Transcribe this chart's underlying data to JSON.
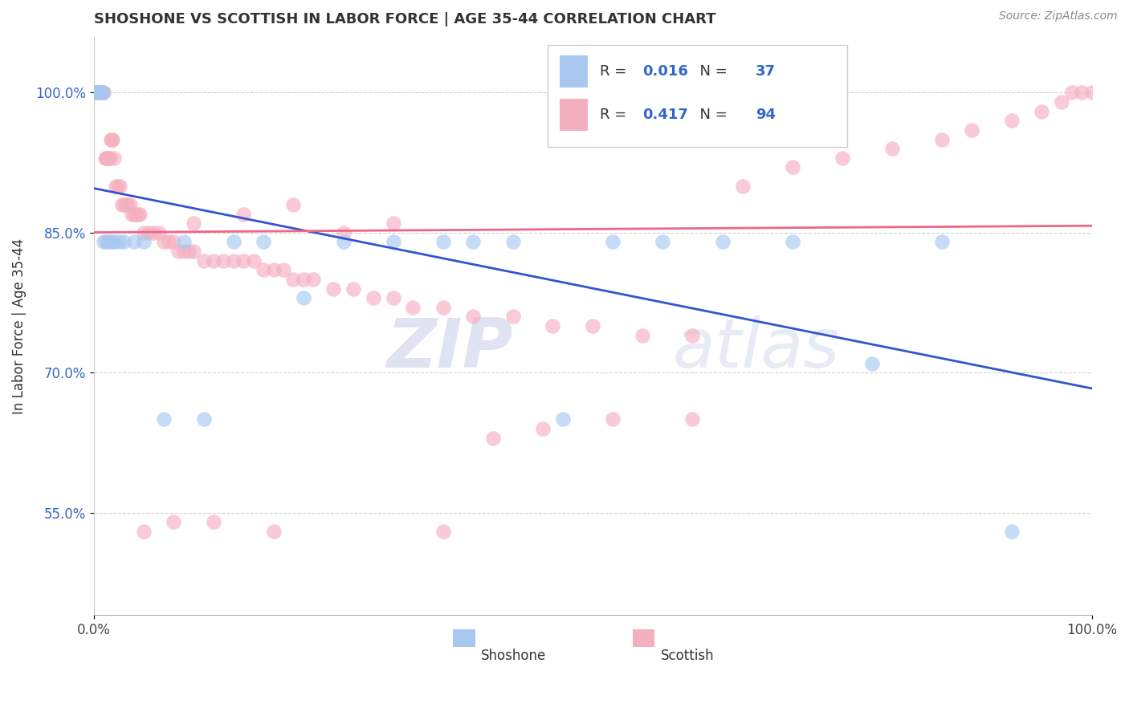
{
  "title": "SHOSHONE VS SCOTTISH IN LABOR FORCE | AGE 35-44 CORRELATION CHART",
  "source": "Source: ZipAtlas.com",
  "xlabel": "",
  "ylabel": "In Labor Force | Age 35-44",
  "xlim": [
    0.0,
    1.0
  ],
  "ylim": [
    0.44,
    1.06
  ],
  "yticks": [
    0.55,
    0.7,
    0.85,
    1.0
  ],
  "ytick_labels": [
    "55.0%",
    "70.0%",
    "85.0%",
    "100.0%"
  ],
  "xtick_labels": [
    "0.0%",
    "100.0%"
  ],
  "legend_shoshone_R": "0.016",
  "legend_shoshone_N": "37",
  "legend_scottish_R": "0.417",
  "legend_scottish_N": "94",
  "shoshone_color": "#a8c8f0",
  "scottish_color": "#f5b0c0",
  "trend_shoshone_color": "#3355cc",
  "trend_scottish_color": "#ee6688",
  "background_color": "#ffffff",
  "grid_color": "#cccccc",
  "watermark_zip": "ZIP",
  "watermark_atlas": "atlas",
  "shoshone_x": [
    0.001,
    0.002,
    0.003,
    0.004,
    0.005,
    0.006,
    0.007,
    0.008,
    0.009,
    0.01,
    0.012,
    0.015,
    0.018,
    0.02,
    0.025,
    0.03,
    0.04,
    0.05,
    0.07,
    0.09,
    0.11,
    0.14,
    0.17,
    0.21,
    0.25,
    0.3,
    0.35,
    0.38,
    0.42,
    0.47,
    0.52,
    0.57,
    0.63,
    0.7,
    0.78,
    0.85,
    0.92
  ],
  "shoshone_y": [
    1.0,
    1.0,
    1.0,
    1.0,
    1.0,
    1.0,
    1.0,
    1.0,
    1.0,
    0.84,
    0.84,
    0.84,
    0.84,
    0.84,
    0.84,
    0.84,
    0.84,
    0.84,
    0.65,
    0.84,
    0.65,
    0.84,
    0.84,
    0.78,
    0.84,
    0.84,
    0.84,
    0.84,
    0.84,
    0.65,
    0.84,
    0.84,
    0.84,
    0.84,
    0.71,
    0.84,
    0.53
  ],
  "scottish_x": [
    0.001,
    0.002,
    0.003,
    0.004,
    0.005,
    0.006,
    0.007,
    0.008,
    0.009,
    0.01,
    0.011,
    0.012,
    0.013,
    0.014,
    0.015,
    0.016,
    0.017,
    0.018,
    0.019,
    0.02,
    0.022,
    0.024,
    0.026,
    0.028,
    0.03,
    0.032,
    0.034,
    0.036,
    0.038,
    0.04,
    0.042,
    0.044,
    0.046,
    0.05,
    0.055,
    0.06,
    0.065,
    0.07,
    0.075,
    0.08,
    0.085,
    0.09,
    0.095,
    0.1,
    0.11,
    0.12,
    0.13,
    0.14,
    0.15,
    0.16,
    0.17,
    0.18,
    0.19,
    0.2,
    0.21,
    0.22,
    0.24,
    0.26,
    0.28,
    0.3,
    0.32,
    0.35,
    0.38,
    0.42,
    0.46,
    0.5,
    0.55,
    0.6,
    0.65,
    0.7,
    0.75,
    0.8,
    0.85,
    0.88,
    0.92,
    0.95,
    0.97,
    0.98,
    0.99,
    1.0,
    0.1,
    0.15,
    0.2,
    0.25,
    0.3,
    0.05,
    0.08,
    0.12,
    0.18,
    0.35,
    0.4,
    0.45,
    0.52,
    0.6
  ],
  "scottish_y": [
    1.0,
    1.0,
    1.0,
    1.0,
    1.0,
    1.0,
    1.0,
    1.0,
    1.0,
    1.0,
    0.93,
    0.93,
    0.93,
    0.93,
    0.93,
    0.93,
    0.95,
    0.95,
    0.95,
    0.93,
    0.9,
    0.9,
    0.9,
    0.88,
    0.88,
    0.88,
    0.88,
    0.88,
    0.87,
    0.87,
    0.87,
    0.87,
    0.87,
    0.85,
    0.85,
    0.85,
    0.85,
    0.84,
    0.84,
    0.84,
    0.83,
    0.83,
    0.83,
    0.83,
    0.82,
    0.82,
    0.82,
    0.82,
    0.82,
    0.82,
    0.81,
    0.81,
    0.81,
    0.8,
    0.8,
    0.8,
    0.79,
    0.79,
    0.78,
    0.78,
    0.77,
    0.77,
    0.76,
    0.76,
    0.75,
    0.75,
    0.74,
    0.74,
    0.9,
    0.92,
    0.93,
    0.94,
    0.95,
    0.96,
    0.97,
    0.98,
    0.99,
    1.0,
    1.0,
    1.0,
    0.86,
    0.87,
    0.88,
    0.85,
    0.86,
    0.53,
    0.54,
    0.54,
    0.53,
    0.53,
    0.63,
    0.64,
    0.65,
    0.65
  ]
}
